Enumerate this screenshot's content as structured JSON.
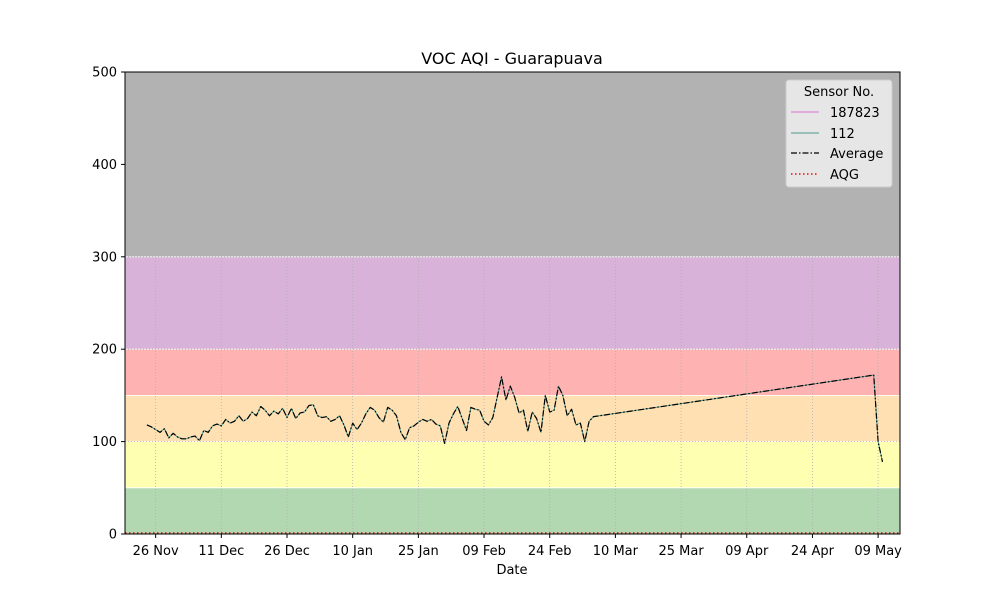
{
  "chart_data": {
    "type": "line",
    "title": "VOC AQI - Guarapuava",
    "xlabel": "Date",
    "ylabel": "",
    "ylim": [
      0,
      500
    ],
    "yticks": [
      0,
      100,
      200,
      300,
      400,
      500
    ],
    "xlim": [
      "2023-11-19",
      "2024-05-14"
    ],
    "xticks": [
      {
        "date": "2023-11-26",
        "label": "26 Nov"
      },
      {
        "date": "2023-12-11",
        "label": "11 Dec"
      },
      {
        "date": "2023-12-26",
        "label": "26 Dec"
      },
      {
        "date": "2024-01-10",
        "label": "10 Jan"
      },
      {
        "date": "2024-01-25",
        "label": "25 Jan"
      },
      {
        "date": "2024-02-09",
        "label": "09 Feb"
      },
      {
        "date": "2024-02-24",
        "label": "24 Feb"
      },
      {
        "date": "2024-03-10",
        "label": "10 Mar"
      },
      {
        "date": "2024-03-25",
        "label": "25 Mar"
      },
      {
        "date": "2024-04-09",
        "label": "09 Apr"
      },
      {
        "date": "2024-04-24",
        "label": "24 Apr"
      },
      {
        "date": "2024-05-09",
        "label": "09 May"
      }
    ],
    "grid": true,
    "legend": {
      "title": "Sensor No.",
      "placement": "top-right",
      "entries": [
        "187823",
        "112",
        "Average",
        "AQG"
      ]
    },
    "bands": [
      {
        "from": 0,
        "to": 50,
        "color": "#b2d8b2"
      },
      {
        "from": 50,
        "to": 100,
        "color": "#ffffb2"
      },
      {
        "from": 100,
        "to": 150,
        "color": "#ffe0b2"
      },
      {
        "from": 150,
        "to": 200,
        "color": "#ffb2b2"
      },
      {
        "from": 200,
        "to": 300,
        "color": "#d8b2d8"
      },
      {
        "from": 300,
        "to": 500,
        "color": "#b2b2b2"
      }
    ],
    "aqg": 1,
    "series": [
      {
        "name": "187823",
        "color": "#da70d6",
        "style": "solid",
        "points": []
      },
      {
        "name": "112",
        "color": "#4a9a8a",
        "style": "solid",
        "points": [
          [
            "2023-11-24",
            118
          ],
          [
            "2023-11-25",
            116
          ],
          [
            "2023-11-26",
            113
          ],
          [
            "2023-11-27",
            110
          ],
          [
            "2023-11-28",
            114
          ],
          [
            "2023-11-29",
            104
          ],
          [
            "2023-11-30",
            109
          ],
          [
            "2023-12-01",
            105
          ],
          [
            "2023-12-02",
            103
          ],
          [
            "2023-12-03",
            103
          ],
          [
            "2023-12-04",
            105
          ],
          [
            "2023-12-05",
            106
          ],
          [
            "2023-12-06",
            101
          ],
          [
            "2023-12-07",
            112
          ],
          [
            "2023-12-08",
            110
          ],
          [
            "2023-12-09",
            117
          ],
          [
            "2023-12-10",
            119
          ],
          [
            "2023-12-11",
            117
          ],
          [
            "2023-12-12",
            124
          ],
          [
            "2023-12-13",
            120
          ],
          [
            "2023-12-14",
            122
          ],
          [
            "2023-12-15",
            128
          ],
          [
            "2023-12-16",
            122
          ],
          [
            "2023-12-17",
            125
          ],
          [
            "2023-12-18",
            132
          ],
          [
            "2023-12-19",
            128
          ],
          [
            "2023-12-20",
            138
          ],
          [
            "2023-12-21",
            134
          ],
          [
            "2023-12-22",
            128
          ],
          [
            "2023-12-23",
            133
          ],
          [
            "2023-12-24",
            130
          ],
          [
            "2023-12-25",
            136
          ],
          [
            "2023-12-26",
            126
          ],
          [
            "2023-12-27",
            136
          ],
          [
            "2023-12-28",
            125
          ],
          [
            "2023-12-29",
            131
          ],
          [
            "2023-12-30",
            132
          ],
          [
            "2023-12-31",
            139
          ],
          [
            "2024-01-01",
            140
          ],
          [
            "2024-01-02",
            128
          ],
          [
            "2024-01-03",
            126
          ],
          [
            "2024-01-04",
            127
          ],
          [
            "2024-01-05",
            122
          ],
          [
            "2024-01-06",
            124
          ],
          [
            "2024-01-07",
            128
          ],
          [
            "2024-01-08",
            118
          ],
          [
            "2024-01-09",
            105
          ],
          [
            "2024-01-10",
            120
          ],
          [
            "2024-01-11",
            113
          ],
          [
            "2024-01-12",
            120
          ],
          [
            "2024-01-13",
            130
          ],
          [
            "2024-01-14",
            137
          ],
          [
            "2024-01-15",
            134
          ],
          [
            "2024-01-16",
            126
          ],
          [
            "2024-01-17",
            121
          ],
          [
            "2024-01-18",
            137
          ],
          [
            "2024-01-19",
            134
          ],
          [
            "2024-01-20",
            128
          ],
          [
            "2024-01-21",
            110
          ],
          [
            "2024-01-22",
            102
          ],
          [
            "2024-01-23",
            115
          ],
          [
            "2024-01-24",
            117
          ],
          [
            "2024-01-25",
            121
          ],
          [
            "2024-01-26",
            124
          ],
          [
            "2024-01-27",
            122
          ],
          [
            "2024-01-28",
            124
          ],
          [
            "2024-01-29",
            119
          ],
          [
            "2024-01-30",
            117
          ],
          [
            "2024-01-31",
            98
          ],
          [
            "2024-02-01",
            120
          ],
          [
            "2024-02-02",
            130
          ],
          [
            "2024-02-03",
            138
          ],
          [
            "2024-02-04",
            125
          ],
          [
            "2024-02-05",
            112
          ],
          [
            "2024-02-06",
            137
          ],
          [
            "2024-02-07",
            135
          ],
          [
            "2024-02-08",
            134
          ],
          [
            "2024-02-09",
            122
          ],
          [
            "2024-02-10",
            118
          ],
          [
            "2024-02-11",
            126
          ],
          [
            "2024-02-12",
            148
          ],
          [
            "2024-02-13",
            170
          ],
          [
            "2024-02-14",
            145
          ],
          [
            "2024-02-15",
            160
          ],
          [
            "2024-02-16",
            148
          ],
          [
            "2024-02-17",
            131
          ],
          [
            "2024-02-18",
            134
          ],
          [
            "2024-02-19",
            111
          ],
          [
            "2024-02-20",
            132
          ],
          [
            "2024-02-21",
            125
          ],
          [
            "2024-02-22",
            110
          ],
          [
            "2024-02-23",
            150
          ],
          [
            "2024-02-24",
            132
          ],
          [
            "2024-02-25",
            134
          ],
          [
            "2024-02-26",
            160
          ],
          [
            "2024-02-27",
            150
          ],
          [
            "2024-02-28",
            128
          ],
          [
            "2024-02-29",
            135
          ],
          [
            "2024-03-01",
            118
          ],
          [
            "2024-03-02",
            120
          ],
          [
            "2024-03-03",
            100
          ],
          [
            "2024-03-04",
            122
          ],
          [
            "2024-03-05",
            127
          ],
          [
            "2024-05-08",
            172
          ],
          [
            "2024-05-09",
            100
          ],
          [
            "2024-05-10",
            78
          ]
        ]
      },
      {
        "name": "Average",
        "color": "#000000",
        "style": "dashdot",
        "points": [
          [
            "2023-11-24",
            118
          ],
          [
            "2023-11-25",
            116
          ],
          [
            "2023-11-26",
            113
          ],
          [
            "2023-11-27",
            110
          ],
          [
            "2023-11-28",
            114
          ],
          [
            "2023-11-29",
            104
          ],
          [
            "2023-11-30",
            109
          ],
          [
            "2023-12-01",
            105
          ],
          [
            "2023-12-02",
            103
          ],
          [
            "2023-12-03",
            103
          ],
          [
            "2023-12-04",
            105
          ],
          [
            "2023-12-05",
            106
          ],
          [
            "2023-12-06",
            101
          ],
          [
            "2023-12-07",
            112
          ],
          [
            "2023-12-08",
            110
          ],
          [
            "2023-12-09",
            117
          ],
          [
            "2023-12-10",
            119
          ],
          [
            "2023-12-11",
            117
          ],
          [
            "2023-12-12",
            124
          ],
          [
            "2023-12-13",
            120
          ],
          [
            "2023-12-14",
            122
          ],
          [
            "2023-12-15",
            128
          ],
          [
            "2023-12-16",
            122
          ],
          [
            "2023-12-17",
            125
          ],
          [
            "2023-12-18",
            132
          ],
          [
            "2023-12-19",
            128
          ],
          [
            "2023-12-20",
            138
          ],
          [
            "2023-12-21",
            134
          ],
          [
            "2023-12-22",
            128
          ],
          [
            "2023-12-23",
            133
          ],
          [
            "2023-12-24",
            130
          ],
          [
            "2023-12-25",
            136
          ],
          [
            "2023-12-26",
            126
          ],
          [
            "2023-12-27",
            136
          ],
          [
            "2023-12-28",
            125
          ],
          [
            "2023-12-29",
            131
          ],
          [
            "2023-12-30",
            132
          ],
          [
            "2023-12-31",
            139
          ],
          [
            "2024-01-01",
            140
          ],
          [
            "2024-01-02",
            128
          ],
          [
            "2024-01-03",
            126
          ],
          [
            "2024-01-04",
            127
          ],
          [
            "2024-01-05",
            122
          ],
          [
            "2024-01-06",
            124
          ],
          [
            "2024-01-07",
            128
          ],
          [
            "2024-01-08",
            118
          ],
          [
            "2024-01-09",
            105
          ],
          [
            "2024-01-10",
            120
          ],
          [
            "2024-01-11",
            113
          ],
          [
            "2024-01-12",
            120
          ],
          [
            "2024-01-13",
            130
          ],
          [
            "2024-01-14",
            137
          ],
          [
            "2024-01-15",
            134
          ],
          [
            "2024-01-16",
            126
          ],
          [
            "2024-01-17",
            121
          ],
          [
            "2024-01-18",
            137
          ],
          [
            "2024-01-19",
            134
          ],
          [
            "2024-01-20",
            128
          ],
          [
            "2024-01-21",
            110
          ],
          [
            "2024-01-22",
            102
          ],
          [
            "2024-01-23",
            115
          ],
          [
            "2024-01-24",
            117
          ],
          [
            "2024-01-25",
            121
          ],
          [
            "2024-01-26",
            124
          ],
          [
            "2024-01-27",
            122
          ],
          [
            "2024-01-28",
            124
          ],
          [
            "2024-01-29",
            119
          ],
          [
            "2024-01-30",
            117
          ],
          [
            "2024-01-31",
            98
          ],
          [
            "2024-02-01",
            120
          ],
          [
            "2024-02-02",
            130
          ],
          [
            "2024-02-03",
            138
          ],
          [
            "2024-02-04",
            125
          ],
          [
            "2024-02-05",
            112
          ],
          [
            "2024-02-06",
            137
          ],
          [
            "2024-02-07",
            135
          ],
          [
            "2024-02-08",
            134
          ],
          [
            "2024-02-09",
            122
          ],
          [
            "2024-02-10",
            118
          ],
          [
            "2024-02-11",
            126
          ],
          [
            "2024-02-12",
            148
          ],
          [
            "2024-02-13",
            170
          ],
          [
            "2024-02-14",
            145
          ],
          [
            "2024-02-15",
            160
          ],
          [
            "2024-02-16",
            148
          ],
          [
            "2024-02-17",
            131
          ],
          [
            "2024-02-18",
            134
          ],
          [
            "2024-02-19",
            111
          ],
          [
            "2024-02-20",
            132
          ],
          [
            "2024-02-21",
            125
          ],
          [
            "2024-02-22",
            110
          ],
          [
            "2024-02-23",
            150
          ],
          [
            "2024-02-24",
            132
          ],
          [
            "2024-02-25",
            134
          ],
          [
            "2024-02-26",
            160
          ],
          [
            "2024-02-27",
            150
          ],
          [
            "2024-02-28",
            128
          ],
          [
            "2024-02-29",
            135
          ],
          [
            "2024-03-01",
            118
          ],
          [
            "2024-03-02",
            120
          ],
          [
            "2024-03-03",
            100
          ],
          [
            "2024-03-04",
            122
          ],
          [
            "2024-03-05",
            127
          ],
          [
            "2024-05-08",
            172
          ],
          [
            "2024-05-09",
            100
          ],
          [
            "2024-05-10",
            78
          ]
        ]
      }
    ]
  }
}
